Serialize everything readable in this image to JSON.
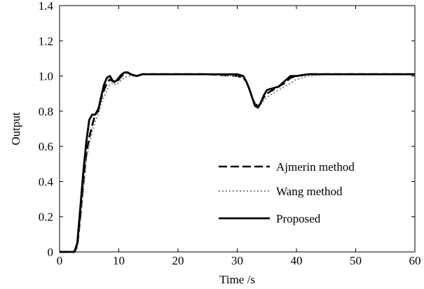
{
  "chart_data": {
    "type": "line",
    "xlabel": "Time /s",
    "ylabel": "Output",
    "xlim": [
      0,
      60
    ],
    "ylim": [
      0,
      1.4
    ],
    "xticks": [
      0,
      10,
      20,
      30,
      40,
      50,
      60
    ],
    "yticks": [
      0,
      0.2,
      0.4,
      0.6,
      0.8,
      1.0,
      1.2,
      1.4
    ],
    "xtick_labels": [
      "0",
      "10",
      "20",
      "30",
      "40",
      "50",
      "60"
    ],
    "ytick_labels": [
      "0",
      "0.2",
      "0.4",
      "0.6",
      "0.8",
      "1.0",
      "1.2",
      "1.4"
    ],
    "grid": false,
    "legend_position": "center-right",
    "series": [
      {
        "name": "Ajmerin method",
        "style": "dashed",
        "color": "#000000",
        "x": [
          0,
          2.5,
          3,
          3.5,
          4,
          4.5,
          5,
          5.5,
          6,
          6.5,
          7,
          7.5,
          8,
          8.5,
          9,
          9.5,
          10,
          10.5,
          11,
          11.5,
          12,
          13,
          14,
          16,
          20,
          25,
          30,
          31,
          31.5,
          32,
          32.5,
          33,
          33.5,
          34,
          34.5,
          35,
          36,
          37,
          38,
          39,
          40,
          42,
          45,
          50,
          55,
          60
        ],
        "y": [
          0,
          0,
          0.03,
          0.2,
          0.38,
          0.55,
          0.65,
          0.72,
          0.78,
          0.81,
          0.87,
          0.92,
          0.96,
          0.98,
          0.97,
          0.96,
          0.98,
          1.0,
          1.01,
          1.02,
          1.01,
          1.0,
          1.01,
          1.01,
          1.01,
          1.01,
          1.0,
          0.99,
          0.97,
          0.93,
          0.88,
          0.84,
          0.83,
          0.85,
          0.88,
          0.9,
          0.92,
          0.94,
          0.96,
          0.99,
          1.0,
          1.01,
          1.01,
          1.01,
          1.01,
          1.01
        ]
      },
      {
        "name": "Wang method",
        "style": "dotted",
        "color": "#808080",
        "x": [
          0,
          2.5,
          3,
          3.5,
          4,
          4.5,
          5,
          5.5,
          6,
          6.5,
          7,
          7.5,
          8,
          8.5,
          9,
          9.5,
          10,
          10.5,
          11,
          11.5,
          12,
          13,
          14,
          16,
          20,
          25,
          30,
          31,
          31.5,
          32,
          32.5,
          33,
          33.5,
          34,
          34.5,
          35,
          36,
          37,
          38,
          39,
          40,
          42,
          45,
          50,
          55,
          60
        ],
        "y": [
          0,
          0,
          0.03,
          0.18,
          0.35,
          0.52,
          0.61,
          0.68,
          0.74,
          0.78,
          0.84,
          0.88,
          0.92,
          0.95,
          0.96,
          0.95,
          0.96,
          0.98,
          0.99,
          1.0,
          1.0,
          1.0,
          1.01,
          1.01,
          1.01,
          1.01,
          1.0,
          0.99,
          0.97,
          0.93,
          0.88,
          0.84,
          0.83,
          0.84,
          0.86,
          0.88,
          0.9,
          0.92,
          0.94,
          0.96,
          0.98,
          1.0,
          1.01,
          1.01,
          1.01,
          1.01
        ]
      },
      {
        "name": "Proposed",
        "style": "solid",
        "color": "#000000",
        "x": [
          0,
          2.5,
          3,
          3.5,
          4,
          4.5,
          5,
          5.5,
          6,
          6.5,
          7,
          7.5,
          8,
          8.5,
          9,
          9.5,
          10,
          10.5,
          11,
          11.5,
          12,
          13,
          14,
          16,
          20,
          25,
          30,
          31,
          31.5,
          32,
          32.5,
          33,
          33.5,
          34,
          34.5,
          35,
          36,
          37,
          38,
          39,
          40,
          42,
          45,
          50,
          55,
          60
        ],
        "y": [
          0,
          0,
          0.05,
          0.25,
          0.45,
          0.62,
          0.75,
          0.78,
          0.78,
          0.8,
          0.88,
          0.95,
          0.99,
          1.0,
          0.97,
          0.97,
          0.99,
          1.01,
          1.02,
          1.02,
          1.01,
          1.0,
          1.01,
          1.01,
          1.01,
          1.01,
          1.01,
          1.0,
          0.97,
          0.93,
          0.88,
          0.83,
          0.82,
          0.85,
          0.89,
          0.92,
          0.93,
          0.94,
          0.97,
          1.0,
          1.0,
          1.01,
          1.01,
          1.01,
          1.01,
          1.01
        ]
      }
    ]
  }
}
